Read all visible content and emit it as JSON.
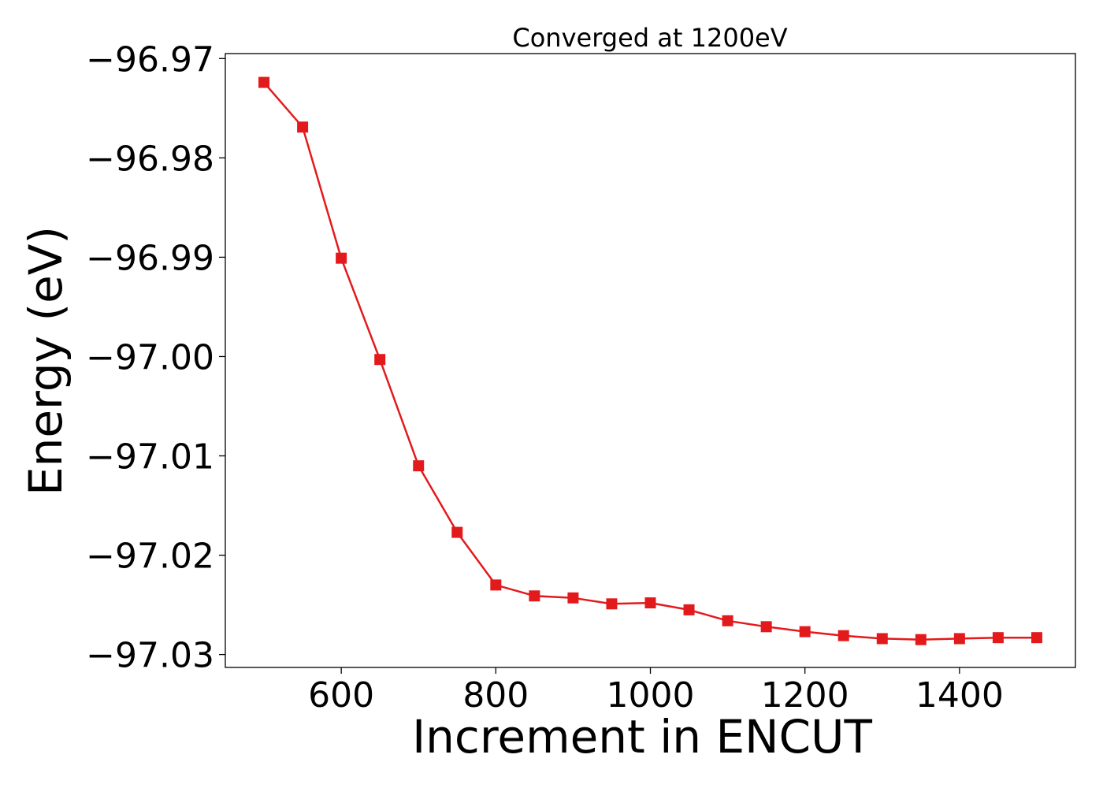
{
  "chart_data": {
    "type": "line",
    "title": "Converged at 1200eV",
    "xlabel": "Increment in ENCUT",
    "ylabel": "Energy (eV)",
    "xlim": [
      450,
      1550
    ],
    "ylim": [
      -97.0313,
      -96.9695
    ],
    "xticks": [
      600,
      800,
      1000,
      1200,
      1400
    ],
    "xtick_labels": [
      "600",
      "800",
      "1000",
      "1200",
      "1400"
    ],
    "yticks": [
      -96.97,
      -96.98,
      -96.99,
      -97.0,
      -97.01,
      -97.02,
      -97.03
    ],
    "ytick_labels": [
      "−96.97",
      "−96.98",
      "−96.99",
      "−97.00",
      "−97.01",
      "−97.02",
      "−97.03"
    ],
    "grid": false,
    "color": "#e31a1c",
    "marker": "square",
    "series": [
      {
        "x": [
          500,
          550,
          600,
          650,
          700,
          750,
          800,
          850,
          900,
          950,
          1000,
          1050,
          1100,
          1150,
          1200,
          1250,
          1300,
          1350,
          1400,
          1450,
          1500
        ],
        "y": [
          -96.9724,
          -96.9769,
          -96.9901,
          -97.0003,
          -97.011,
          -97.0177,
          -97.023,
          -97.0241,
          -97.0243,
          -97.0249,
          -97.0248,
          -97.0255,
          -97.0266,
          -97.0272,
          -97.0277,
          -97.0281,
          -97.0284,
          -97.0285,
          -97.0284,
          -97.0283,
          -97.0283
        ]
      }
    ]
  }
}
